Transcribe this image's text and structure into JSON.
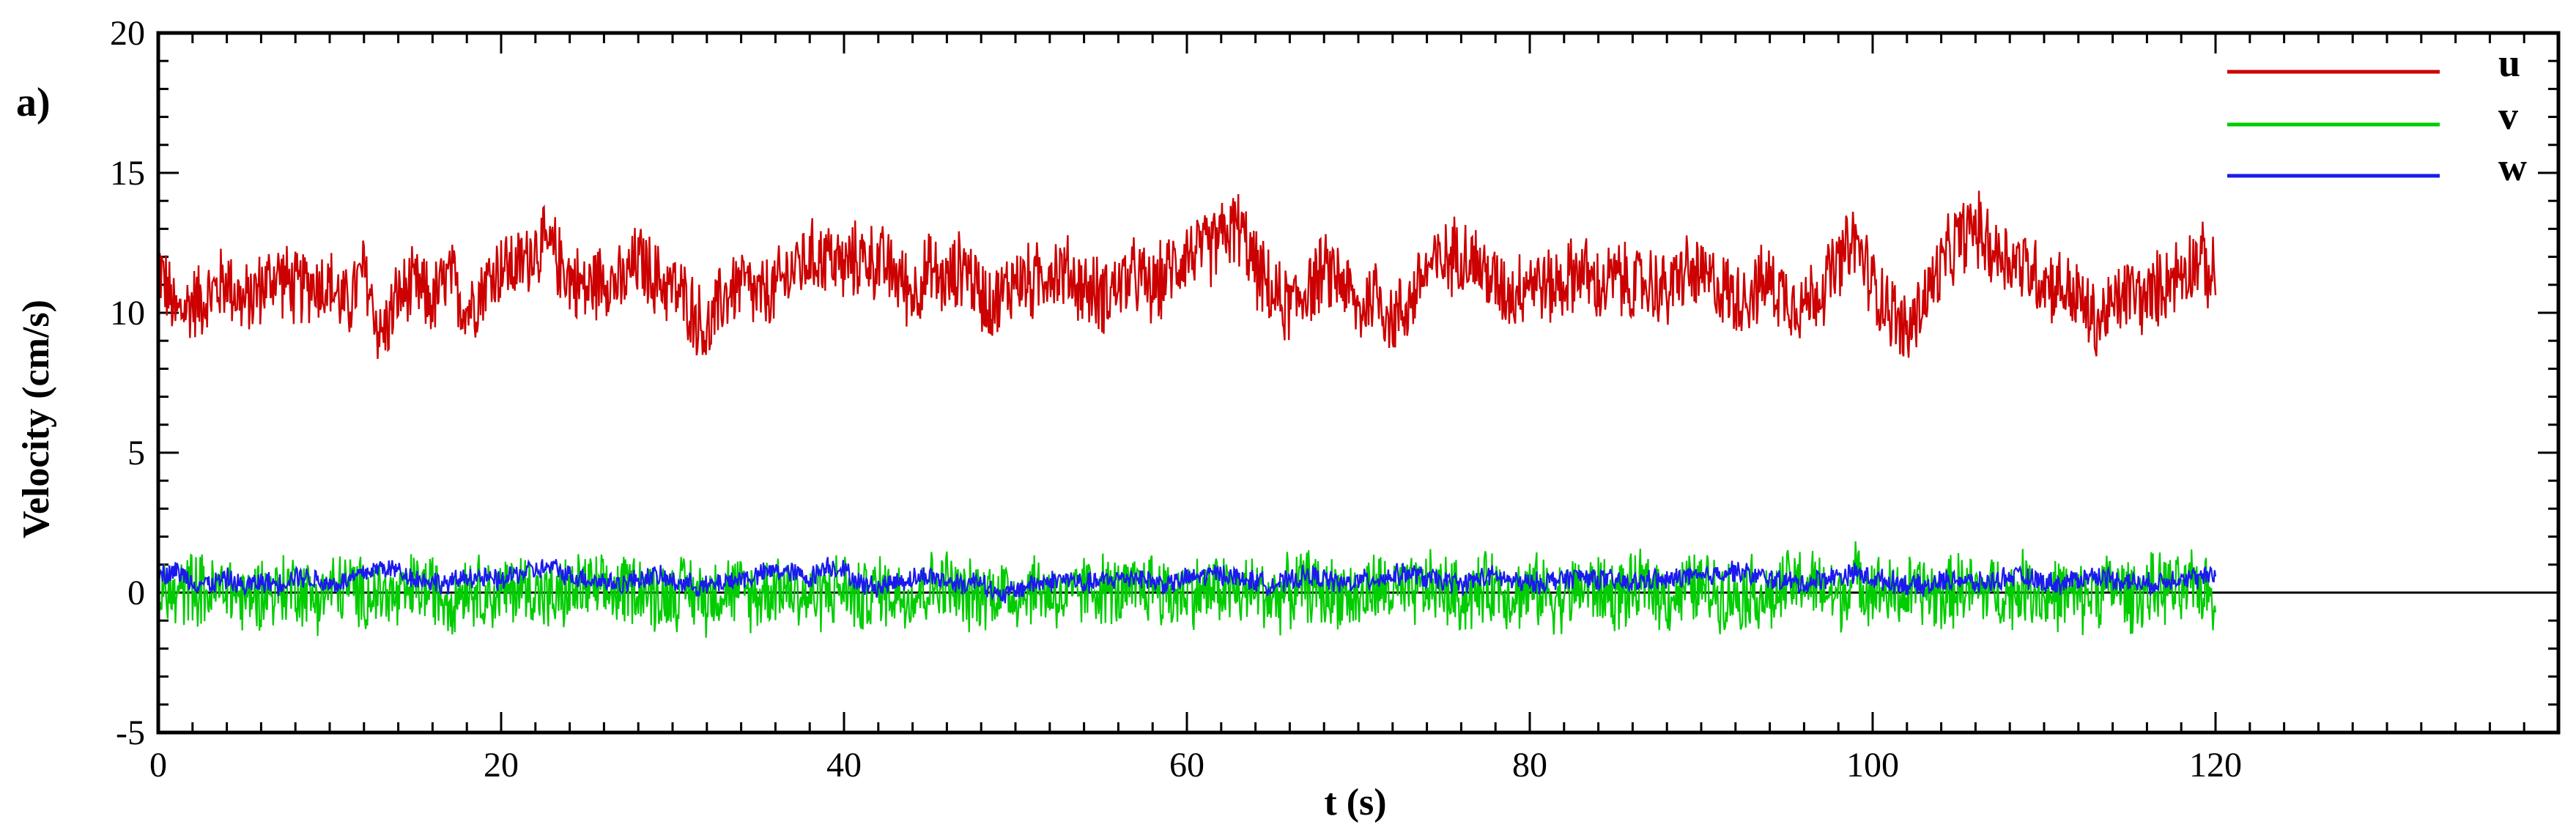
{
  "chart_data": {
    "type": "line",
    "panel_label": "a)",
    "xlabel": "t (s)",
    "ylabel": "Velocity (cm/s)",
    "xlim": [
      0,
      140
    ],
    "ylim": [
      -5,
      20
    ],
    "x_ticks": [
      0,
      20,
      40,
      60,
      80,
      100,
      120
    ],
    "y_ticks": [
      -5,
      0,
      5,
      10,
      15,
      20
    ],
    "x_minor_step": 2,
    "y_minor_step": 1,
    "zero_line": true,
    "legend_position": "top-right",
    "series": [
      {
        "name": "u",
        "color": "#cc0000",
        "x_range": [
          0,
          120
        ],
        "values": [
          11.8,
          9.9,
          10.4,
          10.6,
          11.2,
          10.3,
          10.9,
          11.4,
          10.8,
          11.1,
          11.0,
          10.2,
          11.5,
          9.1,
          10.6,
          10.9,
          10.4,
          11.3,
          10.1,
          11.0,
          11.7,
          11.6,
          12.4,
          12.2,
          11.3,
          10.8,
          11.4,
          10.9,
          11.9,
          11.2,
          10.9,
          10.3,
          9.2,
          10.6,
          11.1,
          10.5,
          10.8,
          11.6,
          11.9,
          12.1,
          11.6,
          12.0,
          11.8,
          11.4,
          10.7,
          11.5,
          11.0,
          11.8,
          10.6,
          10.4,
          11.3,
          11.0,
          11.6,
          11.4,
          10.9,
          10.6,
          11.0,
          11.3,
          10.8,
          11.5,
          12.2,
          12.1,
          12.7,
          13.1,
          11.6,
          10.6,
          10.2,
          10.9,
          11.4,
          11.3,
          10.0,
          10.8,
          9.7,
          10.4,
          11.6,
          11.8,
          12.3,
          11.7,
          11.0,
          10.7,
          11.3,
          10.9,
          11.1,
          11.6,
          10.8,
          11.3,
          10.9,
          11.1,
          10.7,
          11.5,
          11.2,
          11.0,
          10.5,
          10.8,
          11.1,
          10.6,
          10.3,
          10.9,
          11.7,
          12.6,
          11.0,
          10.2,
          9.2,
          10.5,
          11.6,
          12.6,
          13.1,
          12.2,
          12.0,
          11.6,
          11.2,
          10.9,
          10.5,
          9.6,
          10.2,
          10.8,
          10.4,
          11.1,
          11.5,
          12.0,
          11.1
        ],
        "noise_amplitude": 1.6
      },
      {
        "name": "v",
        "color": "#00cc00",
        "x_range": [
          0,
          120
        ],
        "values": [
          0.0,
          -0.2,
          0.3,
          -0.1,
          0.2,
          -0.3,
          0.1,
          0.0,
          0.3,
          -0.2,
          0.1,
          0.2,
          -0.1,
          0.0,
          -0.3,
          0.2,
          0.1,
          -0.2,
          0.3,
          0.0,
          -0.1,
          0.2,
          0.1,
          -0.3,
          0.0,
          0.2,
          -0.1,
          0.1,
          0.3,
          -0.2,
          0.0,
          0.1,
          -0.2,
          0.2,
          0.0,
          -0.1,
          0.3,
          0.1,
          -0.2,
          0.0,
          0.2,
          -0.3,
          0.1,
          0.0,
          -0.1,
          0.2,
          0.3,
          -0.2,
          0.0,
          0.1,
          -0.1,
          0.2,
          0.0,
          -0.3,
          0.1,
          0.2,
          -0.1,
          0.0,
          0.3,
          -0.2,
          0.1,
          0.0,
          0.2,
          -0.1,
          0.1,
          -0.2,
          0.0,
          0.3,
          -0.1,
          0.1,
          -0.3,
          0.2,
          0.0,
          -0.1,
          0.2,
          0.1,
          -0.2,
          0.0,
          0.3,
          -0.1,
          0.1,
          0.0,
          -0.2,
          0.2,
          0.1,
          -0.1,
          0.0,
          0.3,
          -0.2,
          0.1,
          0.2,
          0.0,
          -0.1,
          0.1,
          -0.3,
          0.2,
          0.4,
          0.1,
          -0.2,
          0.5,
          0.2,
          -0.1,
          0.0,
          0.1,
          -0.2,
          0.2,
          0.0,
          0.1,
          -0.1,
          0.3,
          -0.2,
          0.0,
          -0.3,
          0.1,
          0.2,
          -0.1,
          0.0,
          0.2,
          -0.1,
          0.3,
          -0.2
        ],
        "noise_amplitude": 1.5
      },
      {
        "name": "w",
        "color": "#1a1aee",
        "x_range": [
          0,
          120
        ],
        "values": [
          0.6,
          0.8,
          0.4,
          0.3,
          0.5,
          0.2,
          0.4,
          0.3,
          0.6,
          0.5,
          0.3,
          0.4,
          0.7,
          0.9,
          0.8,
          0.5,
          0.4,
          0.3,
          0.6,
          0.5,
          0.4,
          0.7,
          0.8,
          0.9,
          0.6,
          0.5,
          0.4,
          0.3,
          0.5,
          0.6,
          0.4,
          0.3,
          0.2,
          0.4,
          0.5,
          0.6,
          0.8,
          0.7,
          0.5,
          1.0,
          0.8,
          0.3,
          0.2,
          0.4,
          0.5,
          0.6,
          0.4,
          0.3,
          0.5,
          -0.2,
          0.1,
          0.3,
          0.4,
          0.5,
          0.3,
          0.4,
          0.5,
          0.6,
          0.4,
          0.3,
          0.5,
          0.6,
          0.7,
          0.5,
          0.4,
          0.3,
          0.4,
          0.6,
          0.5,
          0.3,
          0.4,
          0.5,
          0.6,
          0.7,
          0.5,
          0.4,
          0.3,
          0.5,
          0.6,
          0.4,
          0.3,
          0.4,
          0.5,
          0.6,
          0.5,
          0.4,
          0.3,
          0.5,
          0.4,
          0.6,
          0.5,
          0.7,
          0.8,
          0.6,
          0.5,
          0.4,
          0.3,
          0.5,
          0.6,
          0.7,
          0.5,
          0.4,
          0.3,
          0.2,
          0.4,
          0.5,
          0.3,
          0.4,
          0.6,
          0.5,
          0.4,
          0.3,
          0.5,
          0.6,
          0.5,
          0.4,
          0.3,
          0.4,
          0.6,
          0.5,
          0.6
        ],
        "noise_amplitude": 0.45
      }
    ]
  }
}
